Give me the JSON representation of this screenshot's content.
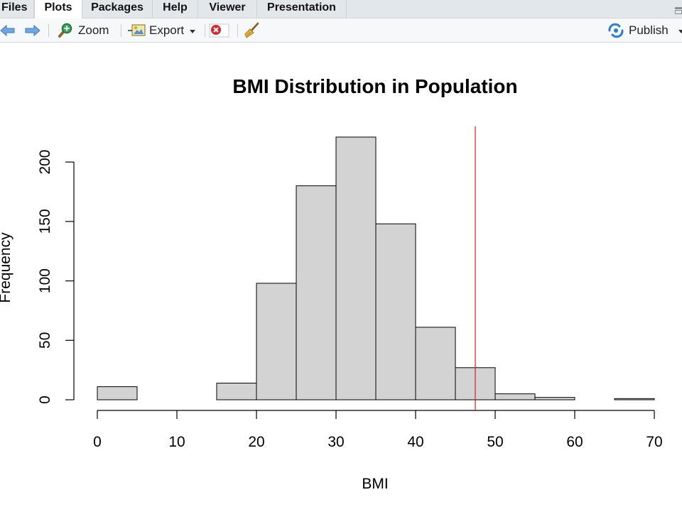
{
  "tabs": [
    {
      "label": "Files",
      "active": false
    },
    {
      "label": "Plots",
      "active": true
    },
    {
      "label": "Packages",
      "active": false
    },
    {
      "label": "Help",
      "active": false
    },
    {
      "label": "Viewer",
      "active": false
    },
    {
      "label": "Presentation",
      "active": false
    }
  ],
  "toolbar": {
    "back_icon": "arrow-left-icon",
    "forward_icon": "arrow-right-icon",
    "zoom_label": "Zoom",
    "zoom_icon": "magnifier-plus-icon",
    "export_label": "Export",
    "export_icon": "export-image-icon",
    "remove_icon": "remove-plot-icon",
    "clear_icon": "broom-icon",
    "publish_label": "Publish",
    "publish_icon": "publish-icon"
  },
  "colors": {
    "bar_fill": "#d3d3d3",
    "bar_stroke": "#000000",
    "reference_line": "#cc2222",
    "toolbar_accent": "#2a7fd4"
  },
  "chart_data": {
    "type": "bar",
    "subtype": "histogram",
    "title": "BMI Distribution in Population",
    "xlabel": "BMI",
    "ylabel": "Frequency",
    "bins": [
      {
        "start": 0,
        "end": 5,
        "count": 11
      },
      {
        "start": 5,
        "end": 10,
        "count": 0
      },
      {
        "start": 10,
        "end": 15,
        "count": 0
      },
      {
        "start": 15,
        "end": 20,
        "count": 14
      },
      {
        "start": 20,
        "end": 25,
        "count": 98
      },
      {
        "start": 25,
        "end": 30,
        "count": 180
      },
      {
        "start": 30,
        "end": 35,
        "count": 221
      },
      {
        "start": 35,
        "end": 40,
        "count": 148
      },
      {
        "start": 40,
        "end": 45,
        "count": 61
      },
      {
        "start": 45,
        "end": 50,
        "count": 27
      },
      {
        "start": 50,
        "end": 55,
        "count": 5
      },
      {
        "start": 55,
        "end": 60,
        "count": 2
      },
      {
        "start": 60,
        "end": 65,
        "count": 0
      },
      {
        "start": 65,
        "end": 70,
        "count": 1
      }
    ],
    "xlim": [
      0,
      70
    ],
    "ylim": [
      0,
      221
    ],
    "x_ticks": [
      0,
      10,
      20,
      30,
      40,
      50,
      60,
      70
    ],
    "y_ticks": [
      0,
      50,
      100,
      150,
      200
    ],
    "vline": {
      "x": 47.5,
      "color": "#cc2222"
    },
    "grid": false,
    "legend": "none"
  }
}
